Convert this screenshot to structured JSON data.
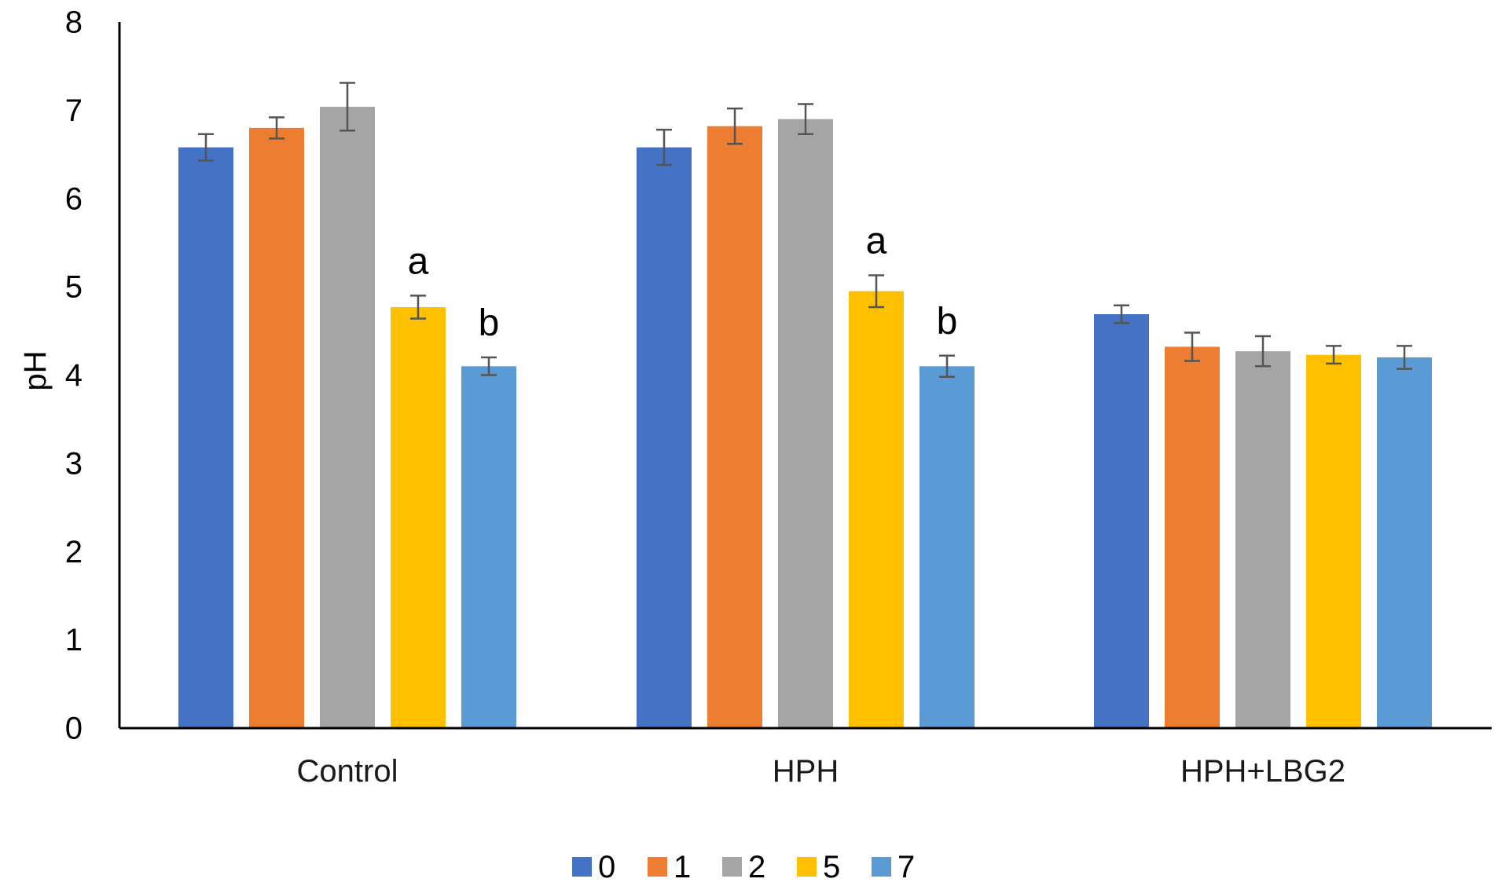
{
  "chart_data": {
    "type": "bar",
    "title": "",
    "xlabel": "",
    "ylabel": "pH",
    "ylim": [
      0,
      8
    ],
    "yticks": [
      0,
      1,
      2,
      3,
      4,
      5,
      6,
      7,
      8
    ],
    "grid": false,
    "legend_position": "bottom",
    "categories": [
      "Control",
      "HPH",
      "HPH+LBG2"
    ],
    "series": [
      {
        "name": "0",
        "color": "#4472C4",
        "values": [
          6.58,
          6.58,
          4.69
        ],
        "errors": [
          0.15,
          0.2,
          0.1
        ]
      },
      {
        "name": "1",
        "color": "#ED7D31",
        "values": [
          6.8,
          6.82,
          4.32
        ],
        "errors": [
          0.12,
          0.2,
          0.16
        ]
      },
      {
        "name": "2",
        "color": "#A5A5A5",
        "values": [
          7.04,
          6.9,
          4.27
        ],
        "errors": [
          0.27,
          0.17,
          0.17
        ]
      },
      {
        "name": "5",
        "color": "#FFC000",
        "values": [
          4.77,
          4.95,
          4.23
        ],
        "errors": [
          0.13,
          0.18,
          0.1
        ]
      },
      {
        "name": "7",
        "color": "#5B9BD5",
        "values": [
          4.1,
          4.1,
          4.2
        ],
        "errors": [
          0.1,
          0.12,
          0.13
        ]
      }
    ],
    "annotations": [
      {
        "category": "Control",
        "series": "5",
        "text": "a"
      },
      {
        "category": "Control",
        "series": "7",
        "text": "b"
      },
      {
        "category": "HPH",
        "series": "5",
        "text": "a"
      },
      {
        "category": "HPH",
        "series": "7",
        "text": "b"
      }
    ]
  }
}
